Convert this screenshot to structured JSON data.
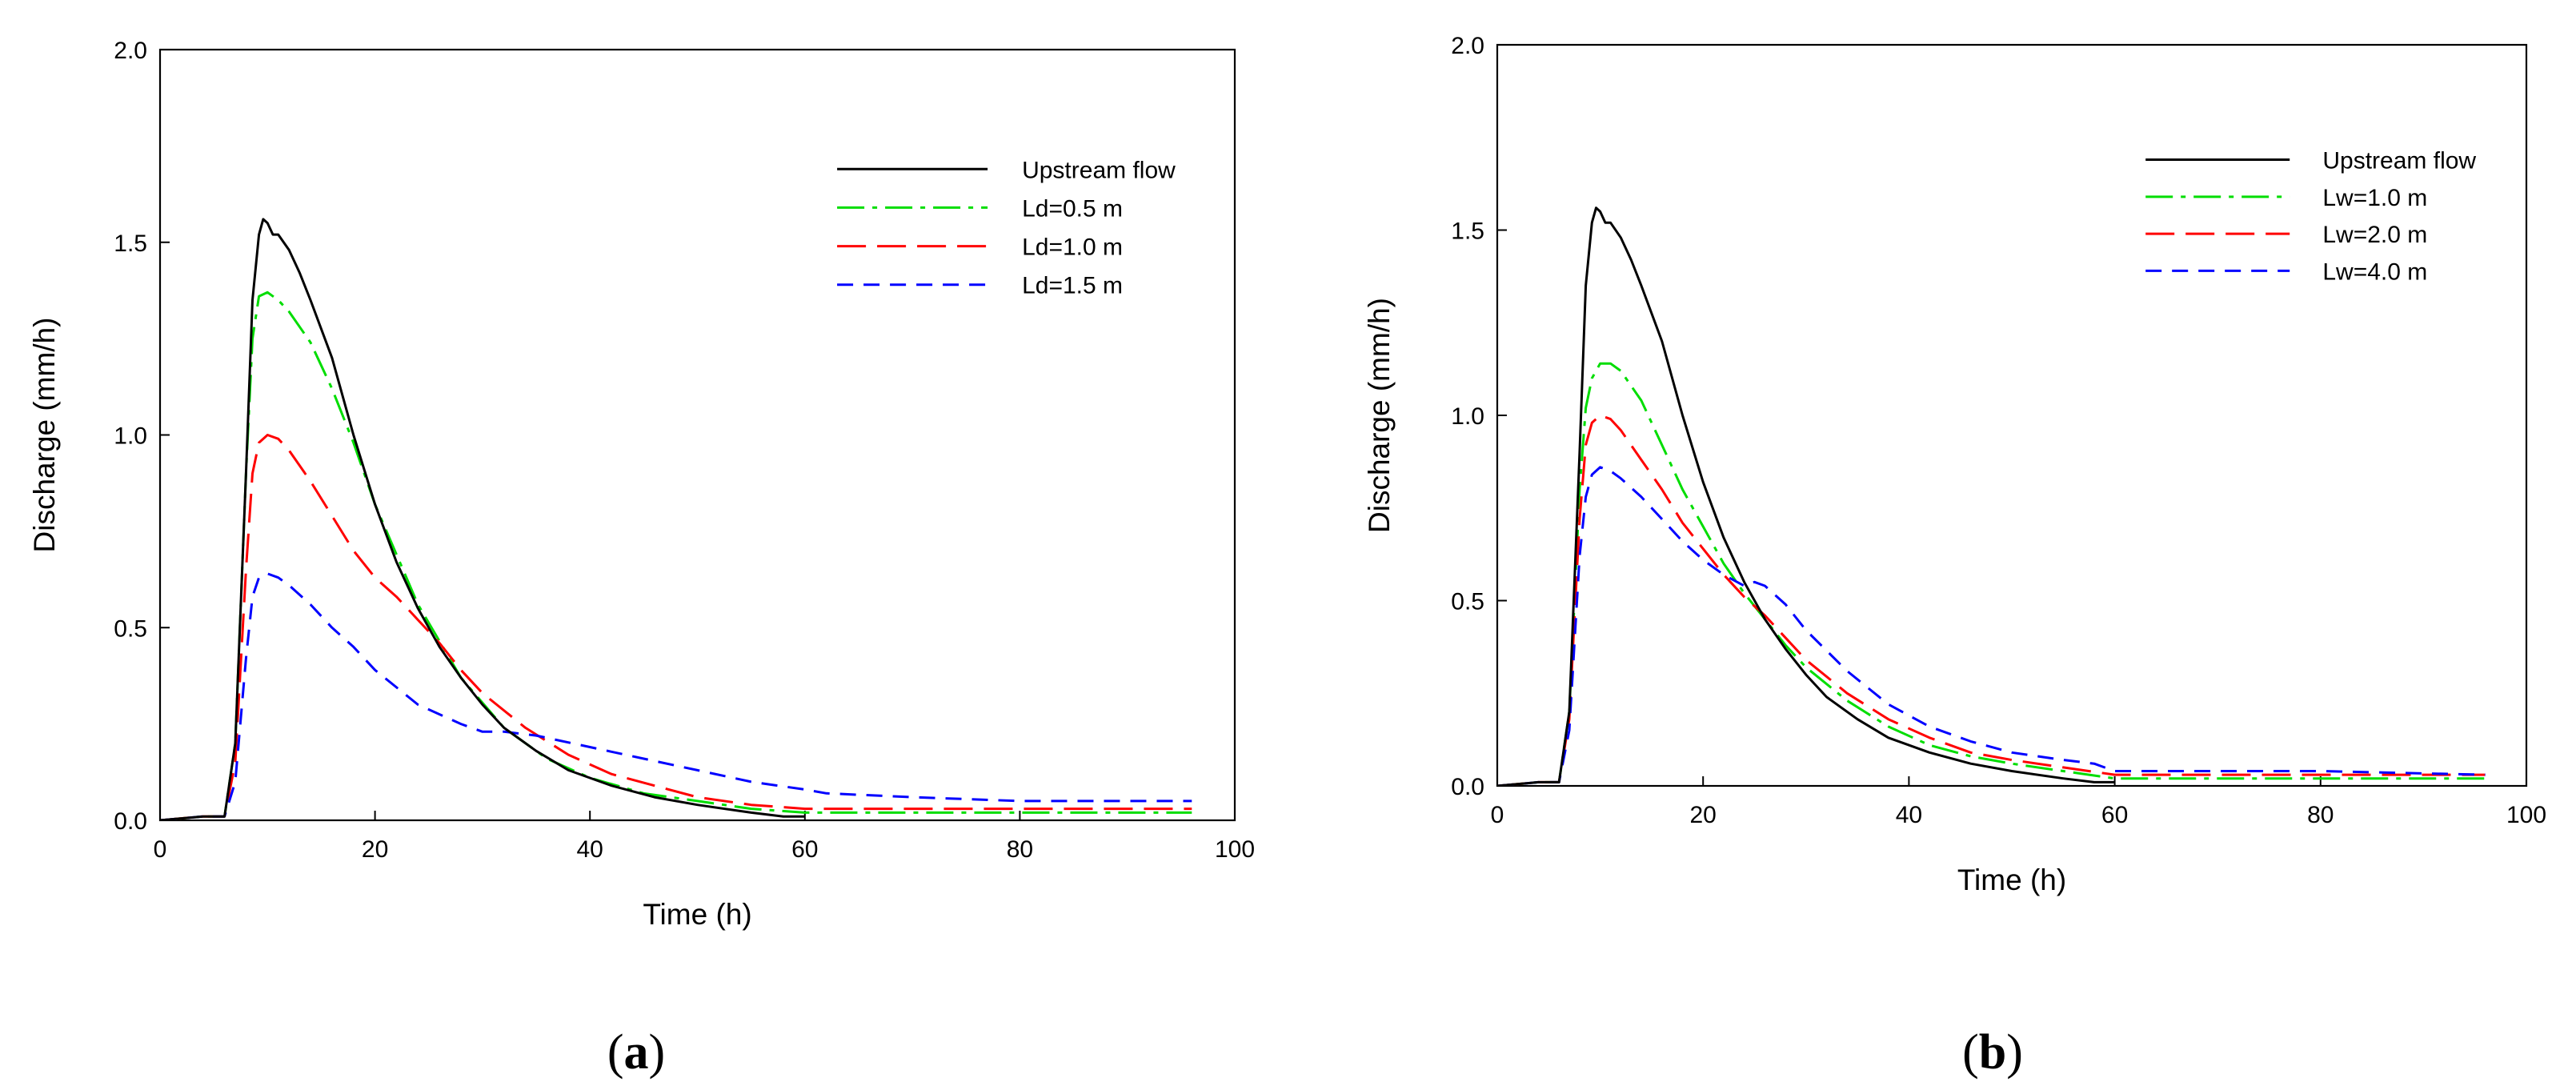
{
  "chart_data": [
    {
      "type": "line",
      "panel_label": "a",
      "xlabel": "Time (h)",
      "ylabel": "Discharge (mm/h)",
      "xlim": [
        0,
        100
      ],
      "ylim": [
        0,
        2.0
      ],
      "xticks": [
        "0",
        "20",
        "40",
        "60",
        "80",
        "100"
      ],
      "yticks": [
        "0.0",
        "0.5",
        "1.0",
        "1.5",
        "2.0"
      ],
      "grid": false,
      "legend_position": "top-right",
      "series": [
        {
          "name": "Upstream flow",
          "color": "#000000",
          "dash": "solid",
          "x": [
            0,
            4,
            6,
            7,
            8,
            8.6,
            9.2,
            9.6,
            10,
            10.5,
            11,
            12,
            13,
            14,
            16,
            18,
            20,
            22,
            24,
            26,
            28,
            30,
            32,
            35,
            38,
            42,
            46,
            50,
            55,
            58,
            60
          ],
          "y": [
            0,
            0.01,
            0.01,
            0.2,
            0.9,
            1.35,
            1.52,
            1.56,
            1.55,
            1.52,
            1.52,
            1.48,
            1.42,
            1.35,
            1.2,
            1.0,
            0.82,
            0.67,
            0.55,
            0.45,
            0.37,
            0.3,
            0.24,
            0.18,
            0.13,
            0.09,
            0.06,
            0.04,
            0.02,
            0.01,
            0.01
          ]
        },
        {
          "name": "Ld=0.5 m",
          "color": "#00dd00",
          "dash": "dashdot",
          "x": [
            0,
            4,
            6,
            7,
            8,
            8.6,
            9.2,
            10,
            11,
            12,
            14,
            16,
            18,
            20,
            24,
            28,
            32,
            36,
            40,
            45,
            50,
            55,
            60,
            70,
            80,
            96
          ],
          "y": [
            0,
            0.01,
            0.01,
            0.2,
            0.9,
            1.25,
            1.36,
            1.37,
            1.35,
            1.32,
            1.24,
            1.12,
            0.98,
            0.82,
            0.56,
            0.37,
            0.24,
            0.16,
            0.11,
            0.07,
            0.05,
            0.03,
            0.02,
            0.02,
            0.02,
            0.02
          ]
        },
        {
          "name": "Ld=1.0 m",
          "color": "#ff0000",
          "dash": "longdash",
          "x": [
            0,
            4,
            6,
            7,
            8,
            8.6,
            9.2,
            10,
            11,
            12,
            14,
            16,
            18,
            20,
            22,
            24,
            26,
            28,
            30,
            34,
            38,
            42,
            46,
            50,
            55,
            60,
            70,
            80,
            96
          ],
          "y": [
            0,
            0.01,
            0.01,
            0.15,
            0.65,
            0.9,
            0.98,
            1.0,
            0.99,
            0.96,
            0.88,
            0.79,
            0.7,
            0.63,
            0.58,
            0.52,
            0.46,
            0.39,
            0.33,
            0.24,
            0.17,
            0.12,
            0.09,
            0.06,
            0.04,
            0.03,
            0.03,
            0.03,
            0.03
          ]
        },
        {
          "name": "Ld=1.5 m",
          "color": "#0000ff",
          "dash": "shortdash",
          "x": [
            0,
            4,
            6,
            7,
            8,
            8.6,
            9.2,
            10,
            11,
            12,
            14,
            16,
            18,
            20,
            24,
            28,
            30,
            32,
            35,
            40,
            45,
            50,
            55,
            60,
            62,
            70,
            80,
            96
          ],
          "y": [
            0,
            0.01,
            0.01,
            0.1,
            0.42,
            0.58,
            0.63,
            0.64,
            0.63,
            0.61,
            0.56,
            0.5,
            0.45,
            0.39,
            0.3,
            0.25,
            0.23,
            0.23,
            0.22,
            0.19,
            0.16,
            0.13,
            0.1,
            0.08,
            0.07,
            0.06,
            0.05,
            0.05
          ]
        }
      ]
    },
    {
      "type": "line",
      "panel_label": "b",
      "xlabel": "Time (h)",
      "ylabel": "Discharge (mm/h)",
      "xlim": [
        0,
        100
      ],
      "ylim": [
        0,
        2.0
      ],
      "xticks": [
        "0",
        "20",
        "40",
        "60",
        "80",
        "100"
      ],
      "yticks": [
        "0.0",
        "0.5",
        "1.0",
        "1.5",
        "2.0"
      ],
      "grid": false,
      "legend_position": "top-right",
      "series": [
        {
          "name": "Upstream flow",
          "color": "#000000",
          "dash": "solid",
          "x": [
            0,
            4,
            6,
            7,
            8,
            8.6,
            9.2,
            9.6,
            10,
            10.5,
            11,
            12,
            13,
            14,
            16,
            18,
            20,
            22,
            24,
            26,
            28,
            30,
            32,
            35,
            38,
            42,
            46,
            50,
            55,
            58,
            60
          ],
          "y": [
            0,
            0.01,
            0.01,
            0.2,
            0.9,
            1.35,
            1.52,
            1.56,
            1.55,
            1.52,
            1.52,
            1.48,
            1.42,
            1.35,
            1.2,
            1.0,
            0.82,
            0.67,
            0.55,
            0.45,
            0.37,
            0.3,
            0.24,
            0.18,
            0.13,
            0.09,
            0.06,
            0.04,
            0.02,
            0.01,
            0.01
          ]
        },
        {
          "name": "Lw=1.0 m",
          "color": "#00dd00",
          "dash": "dashdot",
          "x": [
            0,
            4,
            6,
            7,
            8,
            8.6,
            9.2,
            10,
            11,
            12,
            14,
            16,
            18,
            20,
            22,
            24,
            26,
            28,
            30,
            34,
            38,
            42,
            46,
            50,
            55,
            60,
            70,
            80,
            96
          ],
          "y": [
            0,
            0.01,
            0.01,
            0.2,
            0.8,
            1.02,
            1.1,
            1.14,
            1.14,
            1.12,
            1.04,
            0.92,
            0.8,
            0.7,
            0.6,
            0.52,
            0.45,
            0.38,
            0.32,
            0.23,
            0.16,
            0.11,
            0.08,
            0.06,
            0.04,
            0.02,
            0.02,
            0.02,
            0.02
          ]
        },
        {
          "name": "Lw=2.0 m",
          "color": "#ff0000",
          "dash": "longdash",
          "x": [
            0,
            4,
            6,
            7,
            8,
            8.6,
            9.2,
            10,
            11,
            12,
            14,
            16,
            18,
            20,
            22,
            24,
            26,
            28,
            30,
            34,
            38,
            42,
            46,
            50,
            55,
            60,
            70,
            80,
            96
          ],
          "y": [
            0,
            0.01,
            0.01,
            0.18,
            0.72,
            0.92,
            0.98,
            1.0,
            0.99,
            0.96,
            0.88,
            0.8,
            0.71,
            0.64,
            0.57,
            0.51,
            0.46,
            0.4,
            0.34,
            0.25,
            0.18,
            0.13,
            0.09,
            0.07,
            0.05,
            0.03,
            0.03,
            0.03,
            0.03
          ]
        },
        {
          "name": "Lw=4.0 m",
          "color": "#0000ff",
          "dash": "shortdash",
          "x": [
            0,
            4,
            6,
            7,
            8,
            8.6,
            9.2,
            10,
            11,
            12,
            14,
            16,
            18,
            20,
            22,
            24,
            25,
            26,
            28,
            30,
            34,
            38,
            42,
            46,
            50,
            55,
            58,
            60,
            70,
            80,
            96
          ],
          "y": [
            0,
            0.01,
            0.01,
            0.15,
            0.62,
            0.78,
            0.84,
            0.86,
            0.85,
            0.83,
            0.78,
            0.72,
            0.66,
            0.61,
            0.57,
            0.54,
            0.55,
            0.54,
            0.49,
            0.42,
            0.31,
            0.22,
            0.16,
            0.12,
            0.09,
            0.07,
            0.06,
            0.04,
            0.04,
            0.04,
            0.03
          ]
        }
      ]
    }
  ]
}
